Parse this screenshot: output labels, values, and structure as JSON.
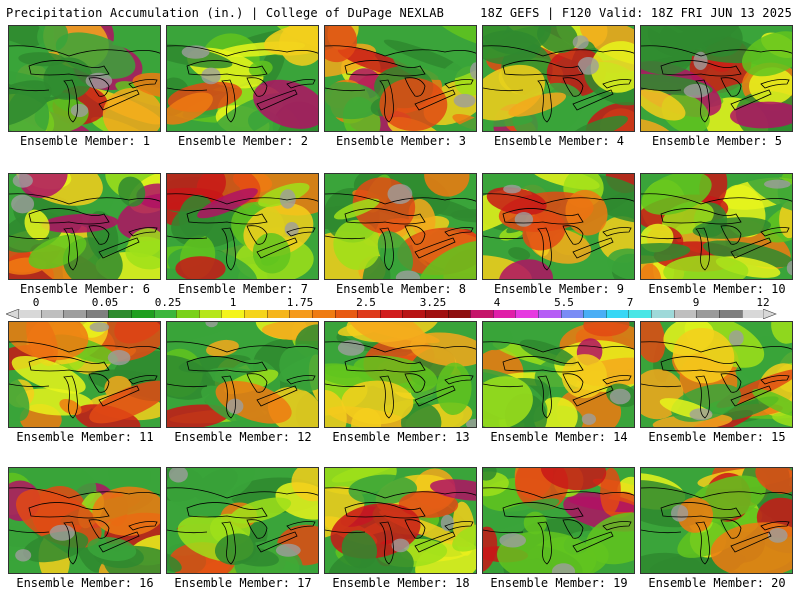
{
  "header": {
    "left": "Precipitation Accumulation (in.) | College of DuPage NEXLAB",
    "right": "18Z GEFS | F120 Valid: 18Z FRI JUN 13 2025"
  },
  "colorbar": {
    "labels": [
      "0",
      "0.05",
      "0.25",
      "1",
      "1.75",
      "2.5",
      "3.25",
      "4",
      "5.5",
      "7",
      "9",
      "12"
    ],
    "colors": [
      "#d8d8d8",
      "#bfbfbf",
      "#9e9e9e",
      "#7f7f7f",
      "#2e8b2e",
      "#1f9f1f",
      "#3cb63c",
      "#7ad11a",
      "#b6e61a",
      "#f4f41c",
      "#f5d41c",
      "#f5b51c",
      "#f59a1c",
      "#ef7b12",
      "#e85a12",
      "#de3b1b",
      "#d11d1d",
      "#b81414",
      "#a01010",
      "#8e0f0f",
      "#c5156a",
      "#e01fa8",
      "#e63be0",
      "#b55ff5",
      "#7a8cf5",
      "#4aaef5",
      "#37d7f5",
      "#48e6e6",
      "#9ed9d9",
      "#bfbfbf",
      "#9a9a9a",
      "#7f7f7f",
      "#d8d8d8"
    ]
  },
  "members": [
    {
      "label": "Ensemble Member: 1"
    },
    {
      "label": "Ensemble Member: 2"
    },
    {
      "label": "Ensemble Member: 3"
    },
    {
      "label": "Ensemble Member: 4"
    },
    {
      "label": "Ensemble Member: 5"
    },
    {
      "label": "Ensemble Member: 6"
    },
    {
      "label": "Ensemble Member: 7"
    },
    {
      "label": "Ensemble Member: 8"
    },
    {
      "label": "Ensemble Member: 9"
    },
    {
      "label": "Ensemble Member: 10"
    },
    {
      "label": "Ensemble Member: 11"
    },
    {
      "label": "Ensemble Member: 12"
    },
    {
      "label": "Ensemble Member: 13"
    },
    {
      "label": "Ensemble Member: 14"
    },
    {
      "label": "Ensemble Member: 15"
    },
    {
      "label": "Ensemble Member: 16"
    },
    {
      "label": "Ensemble Member: 17"
    },
    {
      "label": "Ensemble Member: 18"
    },
    {
      "label": "Ensemble Member: 19"
    },
    {
      "label": "Ensemble Member: 20"
    }
  ]
}
